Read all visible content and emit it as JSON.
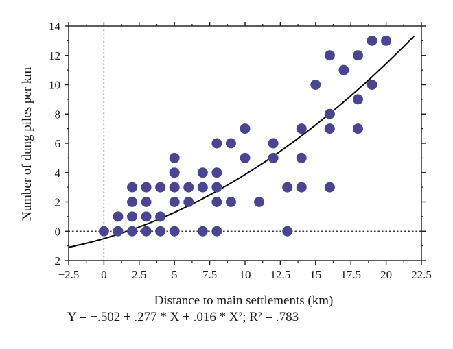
{
  "chart_data": {
    "type": "scatter",
    "title": "",
    "xlabel": "Distance to main settlements (km)",
    "ylabel": "Number of dung piles per km",
    "xlim": [
      -2.5,
      22.5
    ],
    "ylim": [
      -2,
      14
    ],
    "xticks": [
      -2.5,
      0,
      2.5,
      5,
      7.5,
      10,
      12.5,
      15,
      17.5,
      20,
      22.5
    ],
    "xtick_labels": [
      "−2.5",
      "0",
      "2.5",
      "5",
      "7.5",
      "10",
      "12.5",
      "15",
      "17.5",
      "20",
      "22.5"
    ],
    "yticks": [
      -2,
      0,
      2,
      4,
      6,
      8,
      10,
      12,
      14
    ],
    "ytick_labels": [
      "−2",
      "0",
      "2",
      "4",
      "6",
      "8",
      "10",
      "12",
      "14"
    ],
    "grid": false,
    "reference_lines": {
      "x": 0,
      "y": 0,
      "style": "dotted"
    },
    "marker_color": "#4a4593",
    "line_color": "#000000",
    "points": [
      [
        0,
        0
      ],
      [
        1,
        0
      ],
      [
        1,
        1
      ],
      [
        2,
        0
      ],
      [
        2,
        1
      ],
      [
        2,
        2
      ],
      [
        2,
        3
      ],
      [
        3,
        0
      ],
      [
        3,
        1
      ],
      [
        3,
        2
      ],
      [
        3,
        3
      ],
      [
        4,
        0
      ],
      [
        4,
        1
      ],
      [
        4,
        3
      ],
      [
        5,
        0
      ],
      [
        5,
        2
      ],
      [
        5,
        3
      ],
      [
        5,
        4
      ],
      [
        5,
        5
      ],
      [
        6,
        2
      ],
      [
        6,
        3
      ],
      [
        7,
        0
      ],
      [
        7,
        3
      ],
      [
        7,
        4
      ],
      [
        8,
        0
      ],
      [
        8,
        2
      ],
      [
        8,
        3
      ],
      [
        8,
        4
      ],
      [
        8,
        6
      ],
      [
        9,
        2
      ],
      [
        9,
        6
      ],
      [
        10,
        5
      ],
      [
        10,
        7
      ],
      [
        11,
        2
      ],
      [
        12,
        5
      ],
      [
        12,
        6
      ],
      [
        13,
        0
      ],
      [
        13,
        3
      ],
      [
        14,
        3
      ],
      [
        14,
        5
      ],
      [
        14,
        7
      ],
      [
        15,
        10
      ],
      [
        16,
        3
      ],
      [
        16,
        7
      ],
      [
        16,
        8
      ],
      [
        16,
        12
      ],
      [
        17,
        11
      ],
      [
        18,
        7
      ],
      [
        18,
        9
      ],
      [
        18,
        12
      ],
      [
        19,
        10
      ],
      [
        19,
        13
      ],
      [
        20,
        13
      ]
    ],
    "fit": {
      "model": "quadratic",
      "intercept": -0.502,
      "b1": 0.277,
      "b2": 0.016,
      "x_range": [
        -2.5,
        22
      ]
    }
  },
  "formula_text": "Y = −.502 + .277 * X + .016 * X²; R² = .783"
}
